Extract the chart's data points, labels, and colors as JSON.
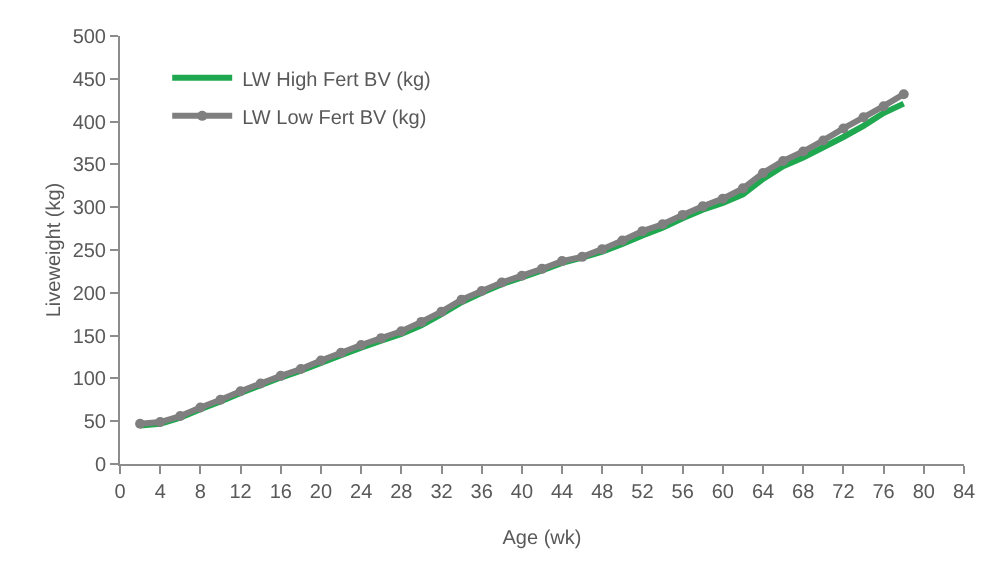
{
  "chart_data": {
    "type": "line",
    "xlabel": "Age (wk)",
    "ylabel": "Liveweight (kg)",
    "x": [
      2,
      4,
      6,
      8,
      10,
      12,
      14,
      16,
      18,
      20,
      22,
      24,
      26,
      28,
      30,
      32,
      34,
      36,
      38,
      40,
      42,
      44,
      46,
      48,
      50,
      52,
      54,
      56,
      58,
      60,
      62,
      64,
      66,
      68,
      70,
      72,
      74,
      76,
      78
    ],
    "series": [
      {
        "name": "LW High Fert BV (kg)",
        "color": "#1fa84f",
        "marker": "none",
        "values": [
          45,
          47,
          54,
          64,
          73,
          83,
          92,
          101,
          109,
          118,
          127,
          136,
          144,
          152,
          162,
          175,
          189,
          200,
          210,
          218,
          226,
          235,
          241,
          248,
          257,
          267,
          276,
          287,
          297,
          305,
          315,
          333,
          348,
          358,
          370,
          382,
          395,
          410,
          421
        ]
      },
      {
        "name": "LW Low Fert BV (kg)",
        "color": "#7f7f7f",
        "marker": "circle",
        "values": [
          47,
          49,
          56,
          66,
          75,
          85,
          94,
          103,
          111,
          121,
          130,
          139,
          147,
          155,
          166,
          178,
          192,
          202,
          212,
          220,
          228,
          237,
          242,
          251,
          261,
          272,
          280,
          291,
          301,
          310,
          322,
          340,
          354,
          365,
          378,
          392,
          405,
          418,
          432
        ]
      }
    ],
    "xlim": [
      0,
      84
    ],
    "xticks": [
      0,
      4,
      8,
      12,
      16,
      20,
      24,
      28,
      32,
      36,
      40,
      44,
      48,
      52,
      56,
      60,
      64,
      68,
      72,
      76,
      80,
      84
    ],
    "ylim": [
      0,
      500
    ],
    "yticks": [
      0,
      50,
      100,
      150,
      200,
      250,
      300,
      350,
      400,
      450,
      500
    ],
    "grid": false,
    "legend": "top left",
    "line_style": "solid"
  }
}
